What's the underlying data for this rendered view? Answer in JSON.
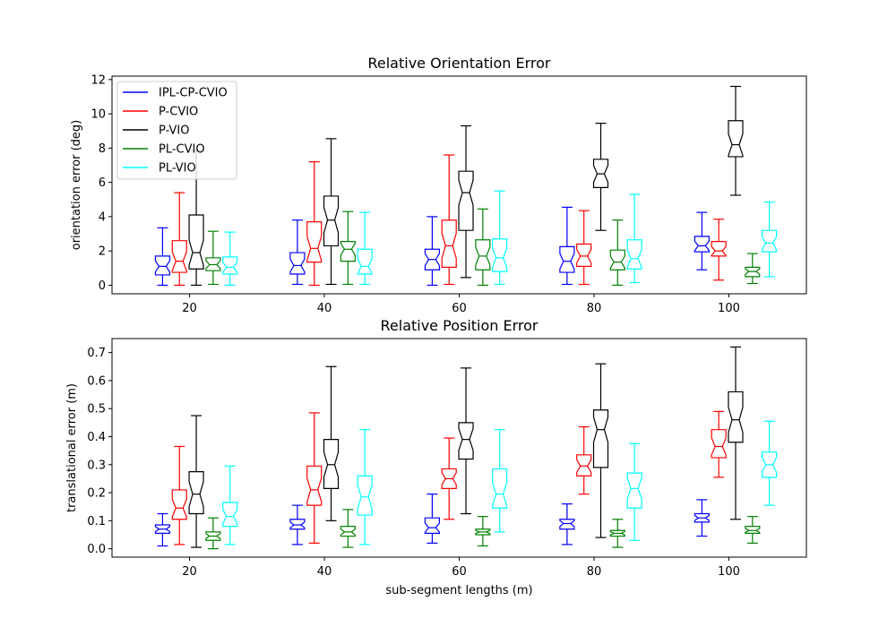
{
  "chart_data": [
    {
      "type": "box",
      "title": "Relative Orientation Error",
      "xlabel": "",
      "ylabel": "orientation error (deg)",
      "categories": [
        "20",
        "40",
        "60",
        "80",
        "100"
      ],
      "xlim": [
        8.5,
        111.5
      ],
      "ylim": [
        -0.5,
        12.2
      ],
      "yticks": [
        0,
        2,
        4,
        6,
        8,
        10,
        12
      ],
      "notched": true,
      "legend": "top-left",
      "series": [
        {
          "name": "IPL-CP-CVIO",
          "color": "#0000ff",
          "offset": -4,
          "boxes": [
            {
              "whislo": 0.0,
              "q1": 0.6,
              "med": 1.1,
              "q3": 1.7,
              "whishi": 3.35
            },
            {
              "whislo": 0.05,
              "q1": 0.65,
              "med": 1.15,
              "q3": 1.9,
              "whishi": 3.8
            },
            {
              "whislo": 0.0,
              "q1": 0.9,
              "med": 1.5,
              "q3": 2.1,
              "whishi": 4.0
            },
            {
              "whislo": 0.05,
              "q1": 0.75,
              "med": 1.4,
              "q3": 2.25,
              "whishi": 4.55
            },
            {
              "whislo": 0.9,
              "q1": 1.95,
              "med": 2.3,
              "q3": 2.85,
              "whishi": 4.25
            }
          ]
        },
        {
          "name": "P-CVIO",
          "color": "#ff0000",
          "offset": -1.5,
          "boxes": [
            {
              "whislo": 0.0,
              "q1": 0.75,
              "med": 1.4,
              "q3": 2.6,
              "whishi": 5.4
            },
            {
              "whislo": 0.0,
              "q1": 1.35,
              "med": 2.15,
              "q3": 3.7,
              "whishi": 7.2
            },
            {
              "whislo": 0.05,
              "q1": 1.05,
              "med": 2.3,
              "q3": 3.8,
              "whishi": 7.6
            },
            {
              "whislo": 0.05,
              "q1": 1.1,
              "med": 1.7,
              "q3": 2.4,
              "whishi": 4.35
            },
            {
              "whislo": 0.3,
              "q1": 1.7,
              "med": 2.0,
              "q3": 2.55,
              "whishi": 3.85
            }
          ]
        },
        {
          "name": "P-VIO",
          "color": "#000000",
          "offset": 1,
          "boxes": [
            {
              "whislo": 0.0,
              "q1": 0.95,
              "med": 1.9,
              "q3": 4.1,
              "whishi": 7.85
            },
            {
              "whislo": 0.05,
              "q1": 2.3,
              "med": 3.8,
              "q3": 5.2,
              "whishi": 8.55
            },
            {
              "whislo": 0.45,
              "q1": 3.2,
              "med": 5.4,
              "q3": 6.65,
              "whishi": 9.3
            },
            {
              "whislo": 3.2,
              "q1": 5.7,
              "med": 6.5,
              "q3": 7.35,
              "whishi": 9.45
            },
            {
              "whislo": 5.25,
              "q1": 7.5,
              "med": 8.2,
              "q3": 9.6,
              "whishi": 11.6
            }
          ]
        },
        {
          "name": "PL-CVIO",
          "color": "#008000",
          "offset": 3.5,
          "boxes": [
            {
              "whislo": 0.05,
              "q1": 0.85,
              "med": 1.2,
              "q3": 1.6,
              "whishi": 3.15
            },
            {
              "whislo": 0.05,
              "q1": 1.4,
              "med": 2.1,
              "q3": 2.55,
              "whishi": 4.3
            },
            {
              "whislo": 0.0,
              "q1": 0.9,
              "med": 1.7,
              "q3": 2.65,
              "whishi": 4.45
            },
            {
              "whislo": 0.0,
              "q1": 0.9,
              "med": 1.35,
              "q3": 2.05,
              "whishi": 3.8
            },
            {
              "whislo": 0.1,
              "q1": 0.5,
              "med": 0.8,
              "q3": 1.05,
              "whishi": 1.85
            }
          ]
        },
        {
          "name": "PL-VIO",
          "color": "#00ffff",
          "offset": 6,
          "boxes": [
            {
              "whislo": 0.0,
              "q1": 0.65,
              "med": 1.05,
              "q3": 1.65,
              "whishi": 3.1
            },
            {
              "whislo": 0.05,
              "q1": 0.65,
              "med": 1.1,
              "q3": 2.1,
              "whishi": 4.25
            },
            {
              "whislo": 0.05,
              "q1": 0.8,
              "med": 1.6,
              "q3": 2.7,
              "whishi": 5.5
            },
            {
              "whislo": 0.15,
              "q1": 0.95,
              "med": 1.55,
              "q3": 2.65,
              "whishi": 5.3
            },
            {
              "whislo": 0.5,
              "q1": 1.95,
              "med": 2.45,
              "q3": 3.2,
              "whishi": 4.85
            }
          ]
        }
      ]
    },
    {
      "type": "box",
      "title": "Relative Position Error",
      "xlabel": "sub-segment lengths (m)",
      "ylabel": "translational error (m)",
      "categories": [
        "20",
        "40",
        "60",
        "80",
        "100"
      ],
      "xlim": [
        8.5,
        111.5
      ],
      "ylim": [
        -0.03,
        0.75
      ],
      "yticks": [
        0.0,
        0.1,
        0.2,
        0.3,
        0.4,
        0.5,
        0.6,
        0.7
      ],
      "yticklabels": [
        "0.0",
        "0.1",
        "0.2",
        "0.3",
        "0.4",
        "0.5",
        "0.6",
        "0.7"
      ],
      "notched": true,
      "series": [
        {
          "name": "IPL-CP-CVIO",
          "color": "#0000ff",
          "offset": -4,
          "boxes": [
            {
              "whislo": 0.01,
              "q1": 0.055,
              "med": 0.07,
              "q3": 0.085,
              "whishi": 0.125
            },
            {
              "whislo": 0.015,
              "q1": 0.07,
              "med": 0.085,
              "q3": 0.105,
              "whishi": 0.155
            },
            {
              "whislo": 0.02,
              "q1": 0.055,
              "med": 0.075,
              "q3": 0.11,
              "whishi": 0.195
            },
            {
              "whislo": 0.015,
              "q1": 0.07,
              "med": 0.09,
              "q3": 0.105,
              "whishi": 0.16
            },
            {
              "whislo": 0.045,
              "q1": 0.095,
              "med": 0.11,
              "q3": 0.125,
              "whishi": 0.175
            }
          ]
        },
        {
          "name": "P-CVIO",
          "color": "#ff0000",
          "offset": -1.5,
          "boxes": [
            {
              "whislo": 0.015,
              "q1": 0.105,
              "med": 0.145,
              "q3": 0.21,
              "whishi": 0.365
            },
            {
              "whislo": 0.02,
              "q1": 0.155,
              "med": 0.21,
              "q3": 0.295,
              "whishi": 0.485
            },
            {
              "whislo": 0.105,
              "q1": 0.215,
              "med": 0.25,
              "q3": 0.285,
              "whishi": 0.395
            },
            {
              "whislo": 0.195,
              "q1": 0.26,
              "med": 0.295,
              "q3": 0.335,
              "whishi": 0.435
            },
            {
              "whislo": 0.255,
              "q1": 0.325,
              "med": 0.365,
              "q3": 0.425,
              "whishi": 0.49
            }
          ]
        },
        {
          "name": "P-VIO",
          "color": "#000000",
          "offset": 1,
          "boxes": [
            {
              "whislo": 0.005,
              "q1": 0.125,
              "med": 0.195,
              "q3": 0.275,
              "whishi": 0.475
            },
            {
              "whislo": 0.1,
              "q1": 0.215,
              "med": 0.3,
              "q3": 0.39,
              "whishi": 0.65
            },
            {
              "whislo": 0.125,
              "q1": 0.32,
              "med": 0.39,
              "q3": 0.45,
              "whishi": 0.645
            },
            {
              "whislo": 0.04,
              "q1": 0.29,
              "med": 0.425,
              "q3": 0.495,
              "whishi": 0.66
            },
            {
              "whislo": 0.105,
              "q1": 0.38,
              "med": 0.46,
              "q3": 0.56,
              "whishi": 0.72
            }
          ]
        },
        {
          "name": "PL-CVIO",
          "color": "#008000",
          "offset": 3.5,
          "boxes": [
            {
              "whislo": 0.0,
              "q1": 0.03,
              "med": 0.045,
              "q3": 0.06,
              "whishi": 0.11
            },
            {
              "whislo": 0.005,
              "q1": 0.045,
              "med": 0.06,
              "q3": 0.08,
              "whishi": 0.14
            },
            {
              "whislo": 0.01,
              "q1": 0.05,
              "med": 0.06,
              "q3": 0.07,
              "whishi": 0.115
            },
            {
              "whislo": 0.005,
              "q1": 0.045,
              "med": 0.055,
              "q3": 0.065,
              "whishi": 0.105
            },
            {
              "whislo": 0.02,
              "q1": 0.055,
              "med": 0.065,
              "q3": 0.08,
              "whishi": 0.115
            }
          ]
        },
        {
          "name": "PL-VIO",
          "color": "#00ffff",
          "offset": 6,
          "boxes": [
            {
              "whislo": 0.015,
              "q1": 0.08,
              "med": 0.115,
              "q3": 0.165,
              "whishi": 0.295
            },
            {
              "whislo": 0.015,
              "q1": 0.12,
              "med": 0.185,
              "q3": 0.26,
              "whishi": 0.425
            },
            {
              "whislo": 0.06,
              "q1": 0.145,
              "med": 0.195,
              "q3": 0.285,
              "whishi": 0.425
            },
            {
              "whislo": 0.03,
              "q1": 0.145,
              "med": 0.215,
              "q3": 0.27,
              "whishi": 0.375
            },
            {
              "whislo": 0.155,
              "q1": 0.255,
              "med": 0.3,
              "q3": 0.345,
              "whishi": 0.455
            }
          ]
        }
      ]
    }
  ]
}
